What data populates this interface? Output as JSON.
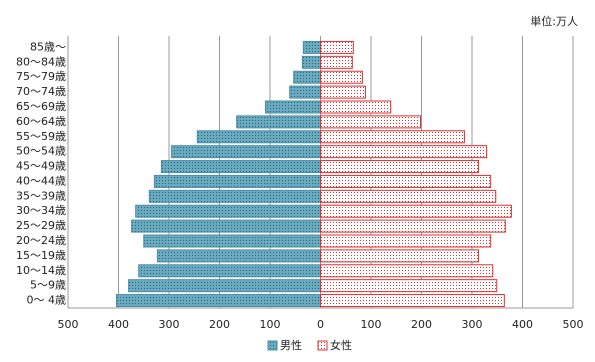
{
  "chart_data": {
    "type": "pyramid",
    "unit_label": "単位:万人",
    "categories": [
      "85歳〜",
      "80〜84歳",
      "75〜79歳",
      "70〜74歳",
      "65〜69歳",
      "60〜64歳",
      "55〜59歳",
      "50〜54歳",
      "45〜49歳",
      "40〜44歳",
      "35〜39歳",
      "30〜34歳",
      "25〜29歳",
      "20〜24歳",
      "15〜19歳",
      "10〜14歳",
      "5〜9歳",
      "0〜 4歳"
    ],
    "series": [
      {
        "name": "男性",
        "color": "#4a8fa8",
        "side": "left",
        "values": [
          34,
          36,
          53,
          61,
          109,
          166,
          244,
          295,
          315,
          329,
          339,
          366,
          374,
          350,
          323,
          360,
          380,
          404
        ]
      },
      {
        "name": "女性",
        "color": "#e03030",
        "side": "right",
        "values": [
          65,
          63,
          83,
          89,
          139,
          198,
          285,
          329,
          313,
          337,
          347,
          378,
          366,
          337,
          313,
          341,
          349,
          364
        ]
      }
    ],
    "xlim": [
      -500,
      500
    ],
    "xticks": [
      {
        "value": -500,
        "label": "500"
      },
      {
        "value": -400,
        "label": "400"
      },
      {
        "value": -300,
        "label": "300"
      },
      {
        "value": -200,
        "label": "200"
      },
      {
        "value": -100,
        "label": "100"
      },
      0,
      100,
      200,
      300,
      400,
      500
    ],
    "grid": true
  }
}
